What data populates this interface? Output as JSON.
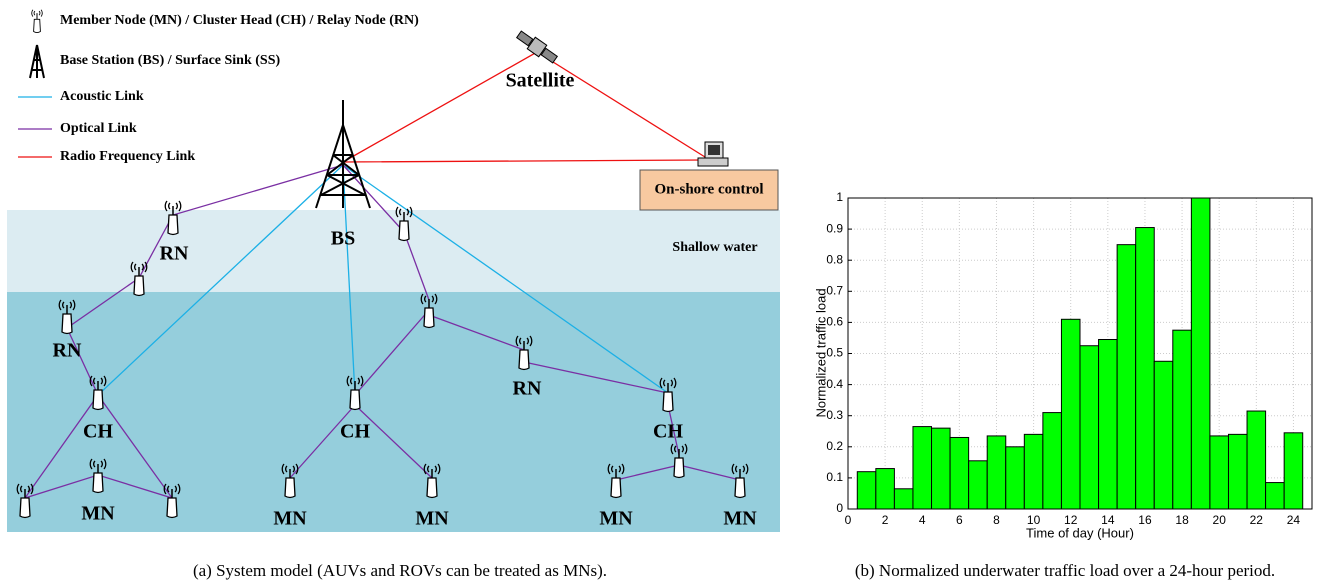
{
  "diagram": {
    "legend": [
      "Member Node (MN) / Cluster Head (CH) / Relay Node (RN)",
      "Base Station (BS) / Surface Sink (SS)",
      "Acoustic Link",
      "Optical Link",
      "Radio Frequency Link"
    ],
    "labels": {
      "satellite": "Satellite",
      "base_station": "BS",
      "control": "On-shore control",
      "shallow": "Shallow water"
    },
    "nodes": [
      "RN",
      "RN",
      "RN",
      "CH",
      "CH",
      "CH",
      "MN",
      "MN",
      "MN",
      "MN",
      "MN"
    ],
    "caption": "(a) System model (AUVs and ROVs can be treated as MNs)."
  },
  "chart_data": {
    "type": "bar",
    "xlabel": "Time of day (Hour)",
    "ylabel": "Normalized traffic load",
    "x": [
      1,
      2,
      3,
      4,
      5,
      6,
      7,
      8,
      9,
      10,
      11,
      12,
      13,
      14,
      15,
      16,
      17,
      18,
      19,
      20,
      21,
      22,
      23,
      24
    ],
    "values": [
      0.12,
      0.13,
      0.065,
      0.265,
      0.26,
      0.23,
      0.155,
      0.235,
      0.2,
      0.24,
      0.31,
      0.61,
      0.525,
      0.545,
      0.85,
      0.905,
      0.475,
      0.575,
      1.0,
      0.235,
      0.24,
      0.315,
      0.085,
      0.245
    ],
    "color": "#00ff00",
    "xlim": [
      0,
      25
    ],
    "ylim": [
      0,
      1
    ],
    "xticks": [
      0,
      2,
      4,
      6,
      8,
      10,
      12,
      14,
      16,
      18,
      20,
      22,
      24
    ],
    "yticks": [
      0,
      0.1,
      0.2,
      0.3,
      0.4,
      0.5,
      0.6,
      0.7,
      0.8,
      0.9,
      1
    ],
    "grid": true,
    "caption": "(b) Normalized underwater traffic load over a 24-hour period."
  }
}
